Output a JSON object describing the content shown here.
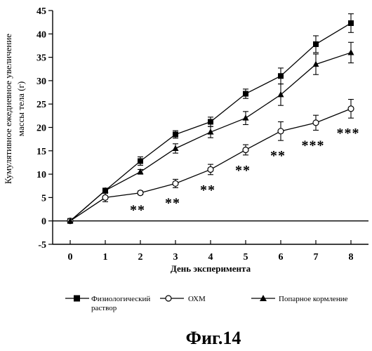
{
  "chart_data": {
    "type": "line",
    "title": "",
    "xlabel": "День эксперимента",
    "ylabel_lines": [
      "Кумулятивное ежедневное увеличение",
      "массы тела (г)"
    ],
    "x": [
      0,
      1,
      2,
      3,
      4,
      5,
      6,
      7,
      8
    ],
    "xlim": [
      -0.5,
      8.5
    ],
    "ylim": [
      -5,
      45
    ],
    "yticks": [
      -5,
      0,
      5,
      10,
      15,
      20,
      25,
      30,
      35,
      40,
      45
    ],
    "xticks": [
      0,
      1,
      2,
      3,
      4,
      5,
      6,
      7,
      8
    ],
    "grid": false,
    "legend_position": "bottom",
    "series": [
      {
        "name_lines": [
          "Физиологический",
          "раствор"
        ],
        "marker": "square",
        "values": [
          0,
          6.5,
          12.8,
          18.5,
          21.2,
          27.2,
          31.0,
          37.8,
          42.3
        ],
        "errors": [
          0,
          0.4,
          0.9,
          0.8,
          1.0,
          1.0,
          1.7,
          1.8,
          2.0
        ]
      },
      {
        "name_lines": [
          "ОХМ"
        ],
        "marker": "circle",
        "values": [
          0,
          5.0,
          6.0,
          8.0,
          11.0,
          15.2,
          19.2,
          21.0,
          24.0
        ],
        "errors": [
          0,
          0.9,
          0.4,
          0.9,
          1.1,
          1.1,
          2.0,
          1.6,
          2.0
        ]
      },
      {
        "name_lines": [
          "Попарное кормление"
        ],
        "marker": "triangle",
        "values": [
          0,
          6.5,
          10.5,
          15.5,
          19.0,
          22.0,
          27.0,
          33.5,
          36.0
        ],
        "errors": [
          0,
          0.4,
          0.5,
          1.0,
          1.2,
          1.4,
          2.3,
          2.2,
          2.2
        ]
      }
    ],
    "annotations": [
      {
        "x": 2,
        "text": "**"
      },
      {
        "x": 3,
        "text": "**"
      },
      {
        "x": 4,
        "text": "**"
      },
      {
        "x": 5,
        "text": "**"
      },
      {
        "x": 6,
        "text": "**"
      },
      {
        "x": 7,
        "text": "***"
      },
      {
        "x": 8,
        "text": "***"
      }
    ]
  },
  "figure_caption": "Фиг.14"
}
